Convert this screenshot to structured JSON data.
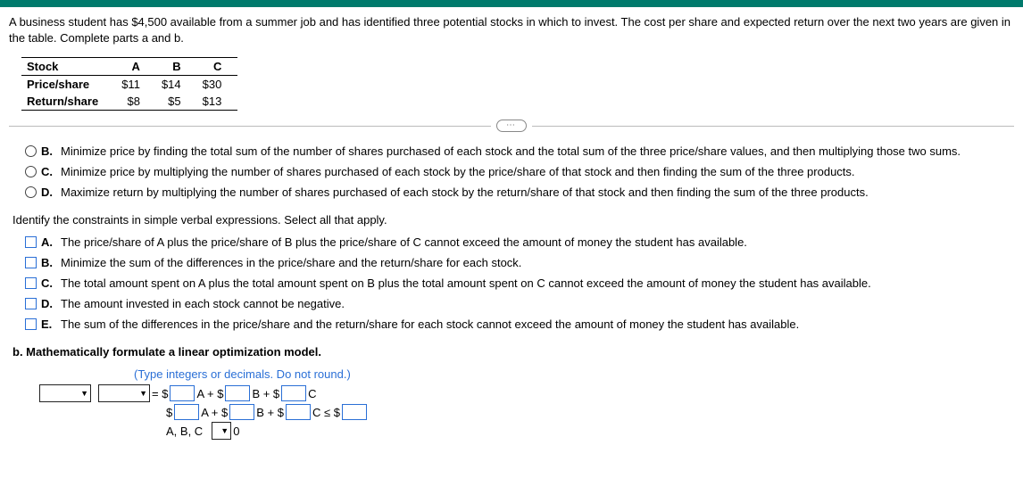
{
  "prompt": "A business student has $4,500 available from a summer job and has identified three potential stocks in which to invest. The cost per share and expected return over the next two years are given in the table. Complete parts a and b.",
  "table": {
    "headers": [
      "Stock",
      "A",
      "B",
      "C"
    ],
    "rows": [
      {
        "label": "Price/share",
        "a": "$11",
        "b": "$14",
        "c": "$30"
      },
      {
        "label": "Return/share",
        "a": "$8",
        "b": "$5",
        "c": "$13"
      }
    ]
  },
  "ellipsis": "⋯",
  "radios": [
    {
      "label": "B.",
      "text": "Minimize price by finding the total sum of the number of shares purchased of each stock and the total sum of the three price/share values, and then multiplying those two sums."
    },
    {
      "label": "C.",
      "text": "Minimize price by multiplying the number of shares purchased of each stock by the price/share of that stock and then finding the sum of the three products."
    },
    {
      "label": "D.",
      "text": "Maximize return by multiplying the number of shares purchased of each stock by the return/share of that stock and then finding the sum of the three products."
    }
  ],
  "constraintsPrompt": "Identify the constraints in simple verbal expressions. Select all that apply.",
  "checks": [
    {
      "label": "A.",
      "text": "The price/share of A plus the price/share of B plus the price/share of C cannot exceed the amount of money the student has available."
    },
    {
      "label": "B.",
      "text": "Minimize the sum of the differences in the price/share and the return/share for each stock."
    },
    {
      "label": "C.",
      "text": "The total amount spent on A plus the total amount spent on B plus the total amount spent on C cannot exceed the amount of money the student has available."
    },
    {
      "label": "D.",
      "text": "The amount invested in each stock cannot be negative."
    },
    {
      "label": "E.",
      "text": "The sum of the differences in the price/share and the return/share for each stock cannot exceed the amount of money the student has available."
    }
  ],
  "partB": "b. Mathematically formulate a linear optimization model.",
  "hint": "(Type integers or decimals. Do not round.)",
  "formula": {
    "eq": "= $",
    "Aplus": "A + $",
    "Bplus": "B + $",
    "C": "C",
    "dollar": "$",
    "Cle": "C ≤ $",
    "abc": "A, B, C",
    "zero": "0"
  }
}
